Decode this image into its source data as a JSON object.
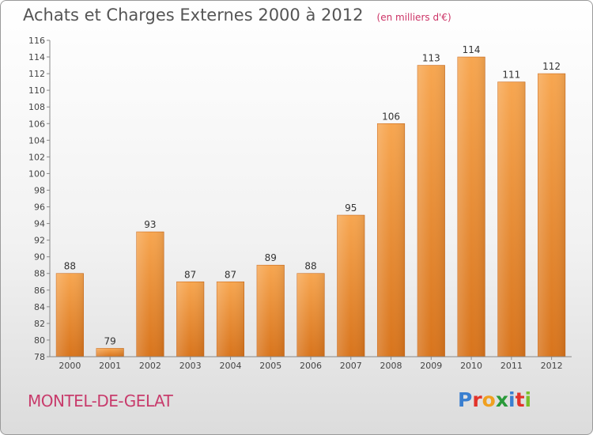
{
  "title": "Achats et Charges Externes 2000 à 2012",
  "subtitle": "(en milliers d'€)",
  "commune": "MONTEL-DE-GELAT",
  "logo": {
    "letters": [
      "P",
      "r",
      "o",
      "x",
      "i",
      "t",
      "i"
    ],
    "colors": [
      "#3a7fd0",
      "#e2332a",
      "#f0a020",
      "#2a9a3a",
      "#3a7fd0",
      "#e2332a",
      "#7bbf2a"
    ]
  },
  "chart_data": {
    "type": "bar",
    "categories": [
      "2000",
      "2001",
      "2002",
      "2003",
      "2004",
      "2005",
      "2006",
      "2007",
      "2008",
      "2009",
      "2010",
      "2011",
      "2012"
    ],
    "values": [
      88,
      79,
      93,
      87,
      87,
      89,
      88,
      95,
      106,
      113,
      114,
      111,
      112
    ],
    "ylim": [
      78,
      116
    ],
    "yticks": [
      78,
      80,
      82,
      84,
      86,
      88,
      90,
      92,
      94,
      96,
      98,
      100,
      102,
      104,
      106,
      108,
      110,
      112,
      114,
      116
    ],
    "grid": false,
    "bar_color": "#f0922e"
  }
}
